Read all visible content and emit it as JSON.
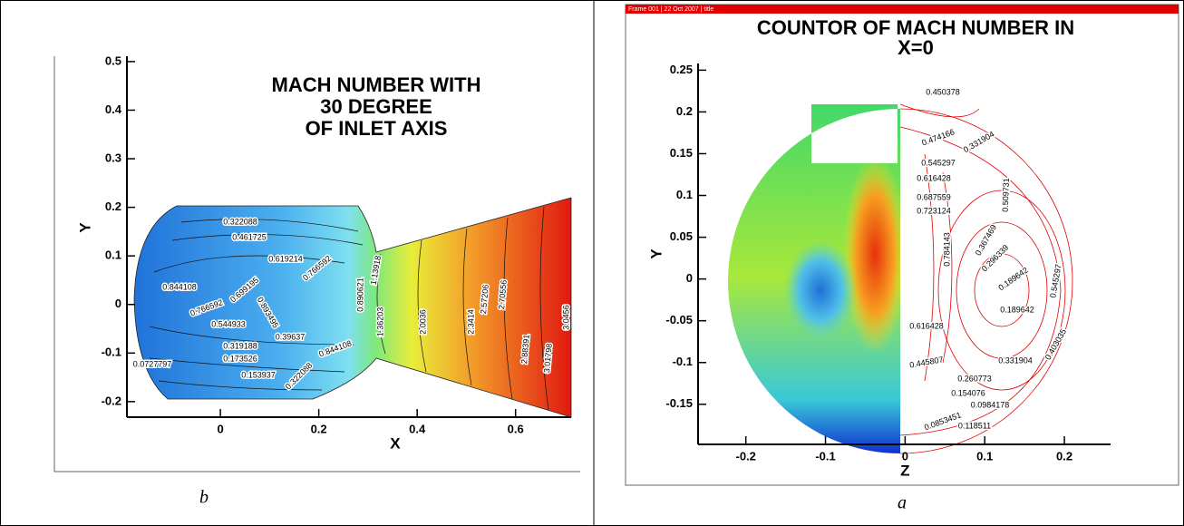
{
  "chart_data": [
    {
      "type": "contour",
      "title": [
        "MACH NUMBER WITH",
        "30 DEGREE",
        "OF INLET AXIS"
      ],
      "x_label": "X",
      "y_label": "Y",
      "xlim": [
        -0.19,
        0.713
      ],
      "ylim": [
        -0.232,
        0.511
      ],
      "xticks": [
        0,
        0.2,
        0.4,
        0.6
      ],
      "yticks": [
        -0.2,
        -0.1,
        0,
        0.1,
        0.2,
        0.3,
        0.4,
        0.5
      ],
      "contour_labels": [
        "0.322088",
        "0.461725",
        "0.619214",
        "0.844108",
        "0.766592",
        "0.699195",
        "0.766592",
        "0.544933",
        "0.39637",
        "0.319188",
        "0.0727797",
        "0.173526",
        "0.153937",
        "0.893495",
        "0.844108",
        "0.890621",
        "1.13918",
        "1.36203",
        "2.0036",
        "2.3414",
        "2.57206",
        "2.70556",
        "2.88391",
        "3.01798",
        "3.0456",
        "0.322088"
      ],
      "caption": "b"
    },
    {
      "type": "contour",
      "header": "Frame 001 | 22 Oct 2007 | title",
      "title": [
        "COUNTOR OF MACH NUMBER IN",
        "X=0"
      ],
      "x_label": "Z",
      "y_label": "Y",
      "xlim": [
        -0.26,
        0.258
      ],
      "ylim": [
        -0.198,
        0.258
      ],
      "xticks": [
        -0.2,
        -0.1,
        0,
        0.1,
        0.2
      ],
      "yticks": [
        -0.15,
        -0.1,
        -0.05,
        0,
        0.05,
        0.1,
        0.15,
        0.2,
        0.25
      ],
      "contour_labels": [
        "0.450378",
        "0.474166",
        "0.331904",
        "0.545297",
        "0.616428",
        "0.687559",
        "0.723124",
        "0.784143",
        "0.509731",
        "0.367469",
        "0.296339",
        "0.189642",
        "0.189642",
        "0.545297",
        "0.616428",
        "0.445807",
        "0.403035",
        "0.331904",
        "0.260773",
        "0.154076",
        "0.0984178",
        "0.0853451",
        "0.118511"
      ],
      "caption": "a"
    }
  ]
}
